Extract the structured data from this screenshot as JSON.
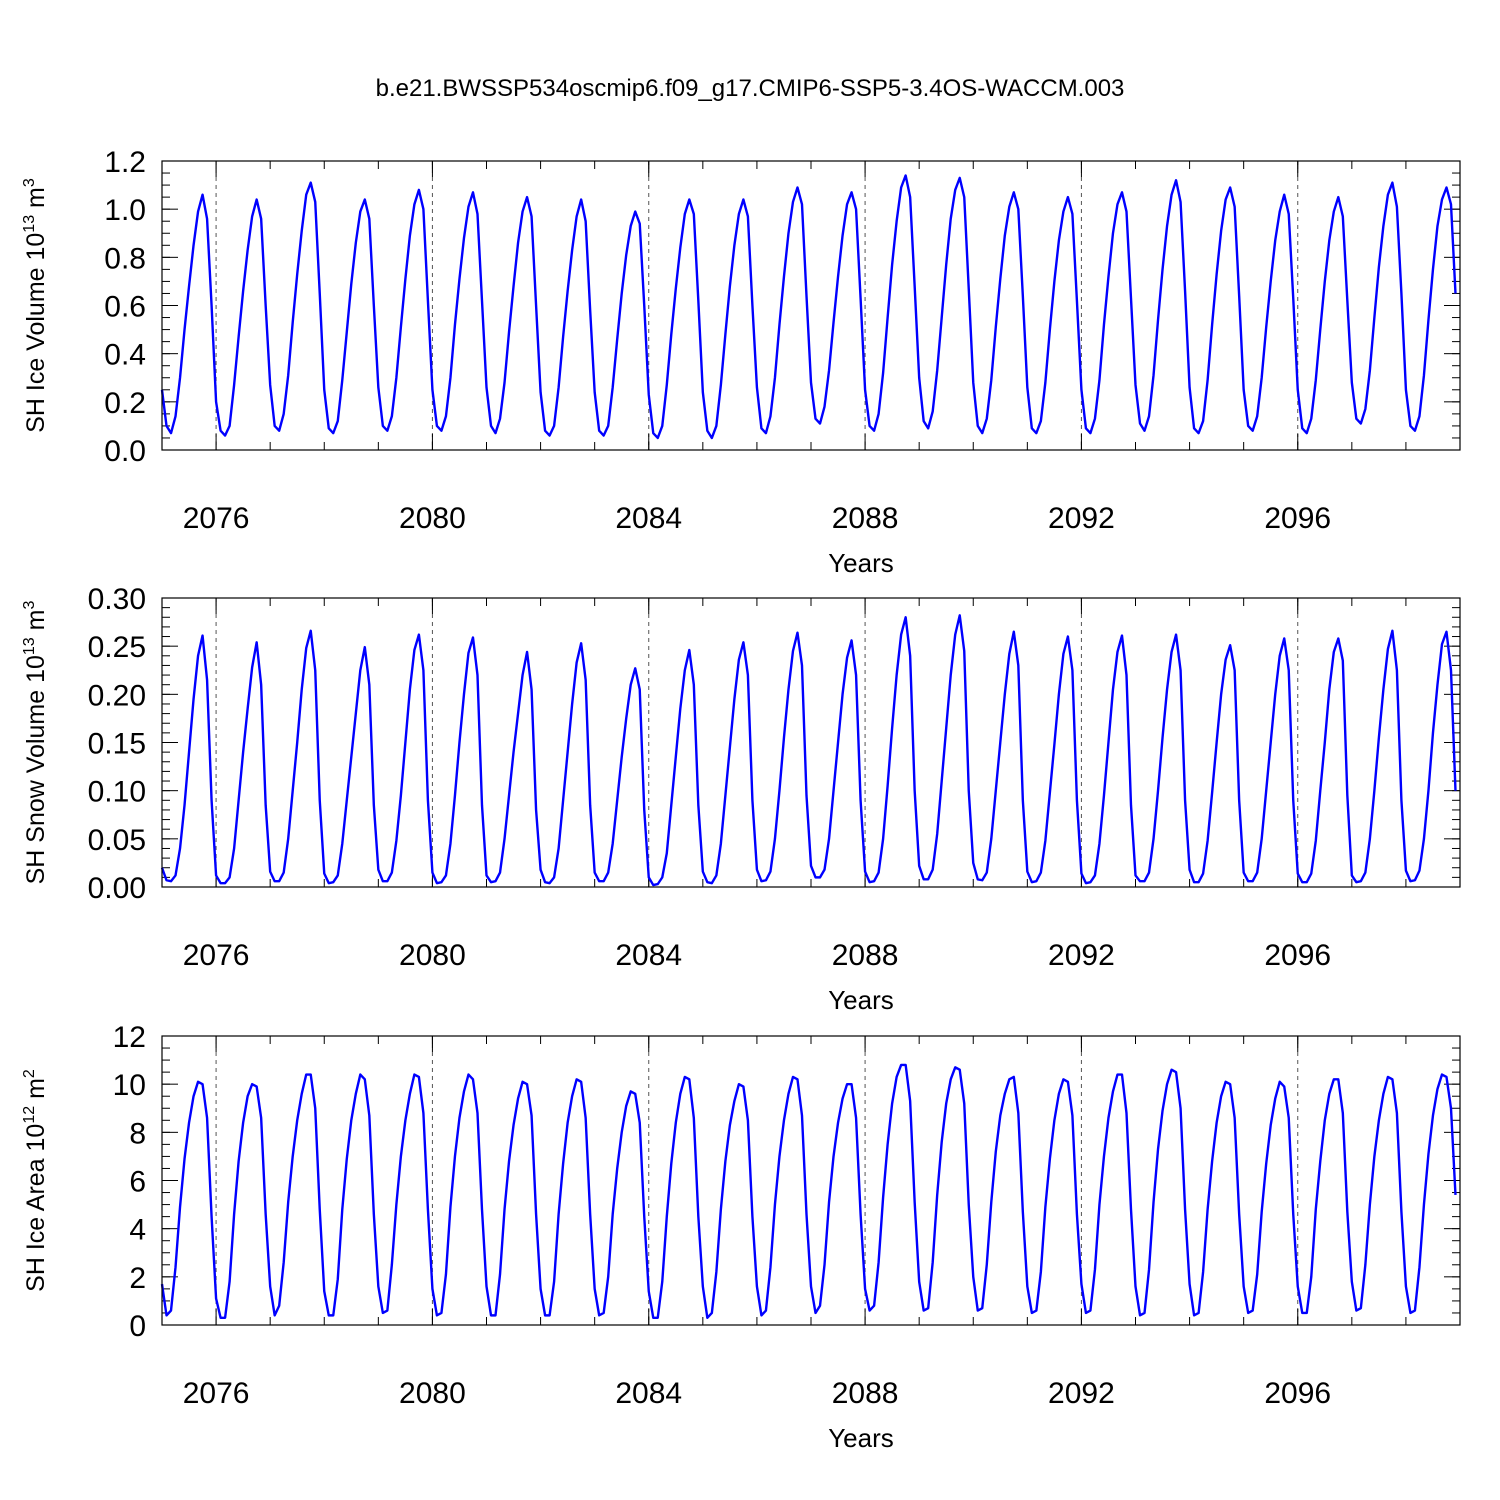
{
  "figure_title": "b.e21.BWSSP534oscmip6.f09_g17.CMIP6-SSP5-3.4OS-WACCM.003",
  "colors": {
    "series": "#0000ff"
  },
  "chart_data": [
    {
      "type": "line",
      "ylabel": "SH Ice Volume 10",
      "ylabel_sup": "13",
      "ylabel_unit": " m",
      "ylabel_unit_sup": "3",
      "xlabel": "Years",
      "xlim": [
        2075.0,
        2099.0
      ],
      "ylim": [
        0,
        1.2
      ],
      "yticks": [
        "0.0",
        "0.2",
        "0.4",
        "0.6",
        "0.8",
        "1.0",
        "1.2"
      ],
      "yminor_step": 0.05,
      "xticks": [
        "2076",
        "2080",
        "2084",
        "2088",
        "2092",
        "2096"
      ],
      "x_start": 2075.0,
      "x_step_months": 1,
      "values": [
        0.25,
        0.1,
        0.07,
        0.14,
        0.3,
        0.5,
        0.68,
        0.85,
        0.99,
        1.06,
        0.96,
        0.6,
        0.2,
        0.08,
        0.06,
        0.1,
        0.27,
        0.47,
        0.66,
        0.83,
        0.97,
        1.04,
        0.96,
        0.6,
        0.27,
        0.1,
        0.08,
        0.15,
        0.31,
        0.53,
        0.73,
        0.91,
        1.06,
        1.11,
        1.03,
        0.65,
        0.25,
        0.09,
        0.07,
        0.12,
        0.29,
        0.49,
        0.69,
        0.86,
        0.99,
        1.04,
        0.96,
        0.6,
        0.26,
        0.1,
        0.08,
        0.14,
        0.3,
        0.51,
        0.71,
        0.89,
        1.02,
        1.08,
        1.0,
        0.62,
        0.25,
        0.1,
        0.08,
        0.14,
        0.3,
        0.52,
        0.71,
        0.88,
        1.01,
        1.07,
        0.98,
        0.62,
        0.26,
        0.1,
        0.07,
        0.13,
        0.28,
        0.49,
        0.68,
        0.86,
        0.99,
        1.05,
        0.97,
        0.6,
        0.24,
        0.08,
        0.06,
        0.1,
        0.26,
        0.47,
        0.66,
        0.83,
        0.97,
        1.04,
        0.95,
        0.58,
        0.24,
        0.08,
        0.06,
        0.1,
        0.26,
        0.46,
        0.65,
        0.81,
        0.93,
        0.99,
        0.94,
        0.6,
        0.23,
        0.07,
        0.05,
        0.1,
        0.27,
        0.48,
        0.67,
        0.84,
        0.98,
        1.04,
        0.98,
        0.62,
        0.24,
        0.08,
        0.05,
        0.1,
        0.27,
        0.48,
        0.68,
        0.85,
        0.98,
        1.04,
        0.97,
        0.6,
        0.26,
        0.09,
        0.07,
        0.14,
        0.3,
        0.52,
        0.72,
        0.9,
        1.03,
        1.09,
        1.02,
        0.64,
        0.28,
        0.13,
        0.11,
        0.18,
        0.33,
        0.53,
        0.72,
        0.89,
        1.02,
        1.07,
        1.0,
        0.63,
        0.25,
        0.1,
        0.08,
        0.15,
        0.32,
        0.55,
        0.77,
        0.95,
        1.09,
        1.14,
        1.05,
        0.68,
        0.3,
        0.12,
        0.09,
        0.16,
        0.33,
        0.55,
        0.77,
        0.96,
        1.08,
        1.13,
        1.05,
        0.67,
        0.28,
        0.1,
        0.07,
        0.13,
        0.29,
        0.51,
        0.71,
        0.89,
        1.01,
        1.07,
        1.0,
        0.64,
        0.26,
        0.09,
        0.07,
        0.12,
        0.28,
        0.5,
        0.7,
        0.87,
        0.99,
        1.05,
        0.98,
        0.62,
        0.25,
        0.09,
        0.07,
        0.13,
        0.29,
        0.52,
        0.72,
        0.9,
        1.02,
        1.07,
        0.99,
        0.63,
        0.27,
        0.11,
        0.08,
        0.14,
        0.31,
        0.54,
        0.75,
        0.93,
        1.06,
        1.12,
        1.03,
        0.66,
        0.26,
        0.09,
        0.07,
        0.12,
        0.29,
        0.52,
        0.73,
        0.91,
        1.04,
        1.09,
        1.01,
        0.64,
        0.25,
        0.1,
        0.08,
        0.14,
        0.3,
        0.51,
        0.7,
        0.87,
        0.99,
        1.06,
        0.98,
        0.63,
        0.25,
        0.09,
        0.07,
        0.13,
        0.29,
        0.5,
        0.7,
        0.87,
        0.99,
        1.05,
        0.97,
        0.62,
        0.28,
        0.13,
        0.11,
        0.17,
        0.33,
        0.55,
        0.76,
        0.93,
        1.06,
        1.11,
        1.01,
        0.65,
        0.25,
        0.1,
        0.08,
        0.14,
        0.31,
        0.54,
        0.75,
        0.93,
        1.04,
        1.09,
        1.02,
        0.65
      ]
    },
    {
      "type": "line",
      "ylabel": "SH Snow Volume 10",
      "ylabel_sup": "13",
      "ylabel_unit": " m",
      "ylabel_unit_sup": "3",
      "xlabel": "Years",
      "xlim": [
        2075.0,
        2099.0
      ],
      "ylim": [
        0,
        0.3
      ],
      "yticks": [
        "0.00",
        "0.05",
        "0.10",
        "0.15",
        "0.20",
        "0.25",
        "0.30"
      ],
      "yminor_step": 0.01,
      "xticks": [
        "2076",
        "2080",
        "2084",
        "2088",
        "2092",
        "2096"
      ],
      "x_start": 2075.0,
      "x_step_months": 1,
      "values": [
        0.02,
        0.007,
        0.006,
        0.012,
        0.04,
        0.085,
        0.14,
        0.195,
        0.24,
        0.261,
        0.215,
        0.09,
        0.012,
        0.004,
        0.004,
        0.01,
        0.04,
        0.09,
        0.14,
        0.185,
        0.228,
        0.254,
        0.21,
        0.085,
        0.016,
        0.006,
        0.006,
        0.015,
        0.05,
        0.1,
        0.15,
        0.205,
        0.248,
        0.266,
        0.225,
        0.09,
        0.014,
        0.004,
        0.005,
        0.012,
        0.045,
        0.09,
        0.135,
        0.18,
        0.225,
        0.249,
        0.21,
        0.085,
        0.018,
        0.006,
        0.006,
        0.015,
        0.048,
        0.095,
        0.15,
        0.205,
        0.246,
        0.262,
        0.225,
        0.09,
        0.015,
        0.004,
        0.005,
        0.012,
        0.045,
        0.095,
        0.15,
        0.2,
        0.243,
        0.259,
        0.22,
        0.085,
        0.012,
        0.005,
        0.006,
        0.015,
        0.05,
        0.095,
        0.14,
        0.18,
        0.22,
        0.244,
        0.205,
        0.08,
        0.018,
        0.005,
        0.004,
        0.01,
        0.04,
        0.09,
        0.14,
        0.19,
        0.233,
        0.253,
        0.215,
        0.085,
        0.015,
        0.006,
        0.006,
        0.015,
        0.045,
        0.09,
        0.135,
        0.175,
        0.21,
        0.227,
        0.205,
        0.08,
        0.01,
        0.002,
        0.003,
        0.01,
        0.035,
        0.085,
        0.135,
        0.185,
        0.225,
        0.246,
        0.21,
        0.085,
        0.016,
        0.005,
        0.004,
        0.012,
        0.045,
        0.095,
        0.145,
        0.195,
        0.236,
        0.254,
        0.22,
        0.09,
        0.018,
        0.006,
        0.007,
        0.016,
        0.05,
        0.1,
        0.155,
        0.205,
        0.245,
        0.264,
        0.23,
        0.095,
        0.022,
        0.01,
        0.01,
        0.018,
        0.05,
        0.1,
        0.15,
        0.2,
        0.238,
        0.256,
        0.22,
        0.09,
        0.016,
        0.005,
        0.006,
        0.015,
        0.05,
        0.105,
        0.165,
        0.22,
        0.262,
        0.28,
        0.24,
        0.1,
        0.022,
        0.008,
        0.008,
        0.018,
        0.055,
        0.11,
        0.165,
        0.22,
        0.262,
        0.282,
        0.245,
        0.1,
        0.025,
        0.008,
        0.007,
        0.015,
        0.05,
        0.1,
        0.15,
        0.2,
        0.242,
        0.265,
        0.23,
        0.09,
        0.016,
        0.005,
        0.006,
        0.015,
        0.048,
        0.098,
        0.148,
        0.2,
        0.242,
        0.26,
        0.225,
        0.09,
        0.014,
        0.004,
        0.005,
        0.012,
        0.045,
        0.095,
        0.15,
        0.205,
        0.244,
        0.261,
        0.22,
        0.085,
        0.012,
        0.006,
        0.006,
        0.015,
        0.05,
        0.1,
        0.155,
        0.205,
        0.244,
        0.262,
        0.225,
        0.09,
        0.018,
        0.005,
        0.005,
        0.014,
        0.048,
        0.098,
        0.15,
        0.2,
        0.236,
        0.251,
        0.225,
        0.09,
        0.015,
        0.006,
        0.006,
        0.015,
        0.05,
        0.1,
        0.15,
        0.2,
        0.24,
        0.258,
        0.225,
        0.09,
        0.014,
        0.005,
        0.005,
        0.014,
        0.048,
        0.1,
        0.15,
        0.205,
        0.244,
        0.258,
        0.235,
        0.095,
        0.012,
        0.005,
        0.006,
        0.015,
        0.05,
        0.1,
        0.155,
        0.205,
        0.247,
        0.266,
        0.225,
        0.09,
        0.017,
        0.006,
        0.007,
        0.017,
        0.05,
        0.1,
        0.16,
        0.21,
        0.252,
        0.265,
        0.225,
        0.1
      ]
    },
    {
      "type": "line",
      "ylabel": "SH Ice Area 10",
      "ylabel_sup": "12",
      "ylabel_unit": " m",
      "ylabel_unit_sup": "2",
      "xlabel": "Years",
      "xlim": [
        2075.0,
        2099.0
      ],
      "ylim": [
        0,
        12
      ],
      "yticks": [
        "0",
        "2",
        "4",
        "6",
        "8",
        "10",
        "12"
      ],
      "yminor_step": 0.5,
      "xticks": [
        "2076",
        "2080",
        "2084",
        "2088",
        "2092",
        "2096"
      ],
      "x_start": 2075.0,
      "x_step_months": 1,
      "values": [
        1.7,
        0.4,
        0.6,
        2.4,
        4.9,
        6.9,
        8.4,
        9.5,
        10.1,
        10.0,
        8.6,
        4.5,
        1.1,
        0.3,
        0.3,
        1.8,
        4.6,
        6.8,
        8.4,
        9.5,
        10.0,
        9.9,
        8.6,
        4.6,
        1.6,
        0.4,
        0.8,
        2.6,
        5.1,
        7.0,
        8.5,
        9.6,
        10.4,
        10.4,
        9.0,
        4.8,
        1.4,
        0.4,
        0.4,
        1.9,
        4.8,
        6.9,
        8.5,
        9.6,
        10.4,
        10.2,
        8.7,
        4.6,
        1.6,
        0.5,
        0.6,
        2.5,
        5.0,
        7.0,
        8.5,
        9.6,
        10.4,
        10.3,
        8.8,
        4.8,
        1.5,
        0.4,
        0.5,
        2.1,
        4.9,
        7.0,
        8.6,
        9.7,
        10.4,
        10.2,
        8.8,
        4.8,
        1.6,
        0.4,
        0.4,
        2.1,
        4.8,
        6.8,
        8.3,
        9.4,
        10.1,
        10.0,
        8.7,
        4.6,
        1.5,
        0.4,
        0.4,
        1.8,
        4.6,
        6.7,
        8.4,
        9.5,
        10.2,
        10.1,
        8.6,
        4.6,
        1.5,
        0.4,
        0.5,
        2.0,
        4.6,
        6.5,
        8.0,
        9.1,
        9.7,
        9.6,
        8.4,
        4.5,
        1.4,
        0.3,
        0.3,
        1.8,
        4.5,
        6.7,
        8.4,
        9.6,
        10.3,
        10.2,
        8.6,
        4.5,
        1.6,
        0.3,
        0.5,
        2.2,
        4.8,
        6.8,
        8.3,
        9.3,
        10.0,
        9.9,
        8.5,
        4.5,
        1.6,
        0.4,
        0.6,
        2.4,
        5.0,
        7.0,
        8.5,
        9.6,
        10.3,
        10.2,
        8.7,
        4.6,
        1.6,
        0.5,
        0.8,
        2.5,
        5.1,
        7.0,
        8.4,
        9.4,
        10.0,
        10.0,
        8.6,
        4.6,
        1.5,
        0.6,
        0.8,
        2.6,
        5.3,
        7.5,
        9.2,
        10.3,
        10.8,
        10.8,
        9.3,
        5.1,
        1.8,
        0.6,
        0.7,
        2.6,
        5.4,
        7.6,
        9.2,
        10.2,
        10.7,
        10.6,
        9.2,
        5.0,
        2.0,
        0.6,
        0.7,
        2.5,
        5.1,
        7.2,
        8.7,
        9.6,
        10.2,
        10.3,
        8.8,
        4.7,
        1.6,
        0.5,
        0.6,
        2.2,
        4.9,
        6.9,
        8.5,
        9.6,
        10.2,
        10.1,
        8.7,
        4.6,
        1.7,
        0.5,
        0.6,
        2.3,
        5.0,
        7.0,
        8.6,
        9.7,
        10.4,
        10.4,
        8.8,
        4.8,
        1.6,
        0.4,
        0.5,
        2.3,
        5.1,
        7.3,
        8.9,
        10.0,
        10.6,
        10.5,
        9.0,
        4.8,
        1.7,
        0.4,
        0.5,
        2.2,
        4.8,
        6.8,
        8.4,
        9.5,
        10.1,
        10.0,
        8.6,
        4.6,
        1.6,
        0.5,
        0.6,
        2.1,
        4.7,
        6.7,
        8.3,
        9.4,
        10.1,
        9.9,
        8.6,
        4.6,
        1.6,
        0.5,
        0.5,
        2.0,
        4.8,
        6.8,
        8.5,
        9.6,
        10.2,
        10.2,
        8.8,
        4.7,
        1.8,
        0.6,
        0.7,
        2.5,
        5.0,
        7.0,
        8.5,
        9.6,
        10.3,
        10.2,
        8.8,
        4.7,
        1.6,
        0.5,
        0.6,
        2.4,
        5.0,
        7.1,
        8.7,
        9.8,
        10.4,
        10.3,
        9.0,
        5.4
      ]
    }
  ]
}
